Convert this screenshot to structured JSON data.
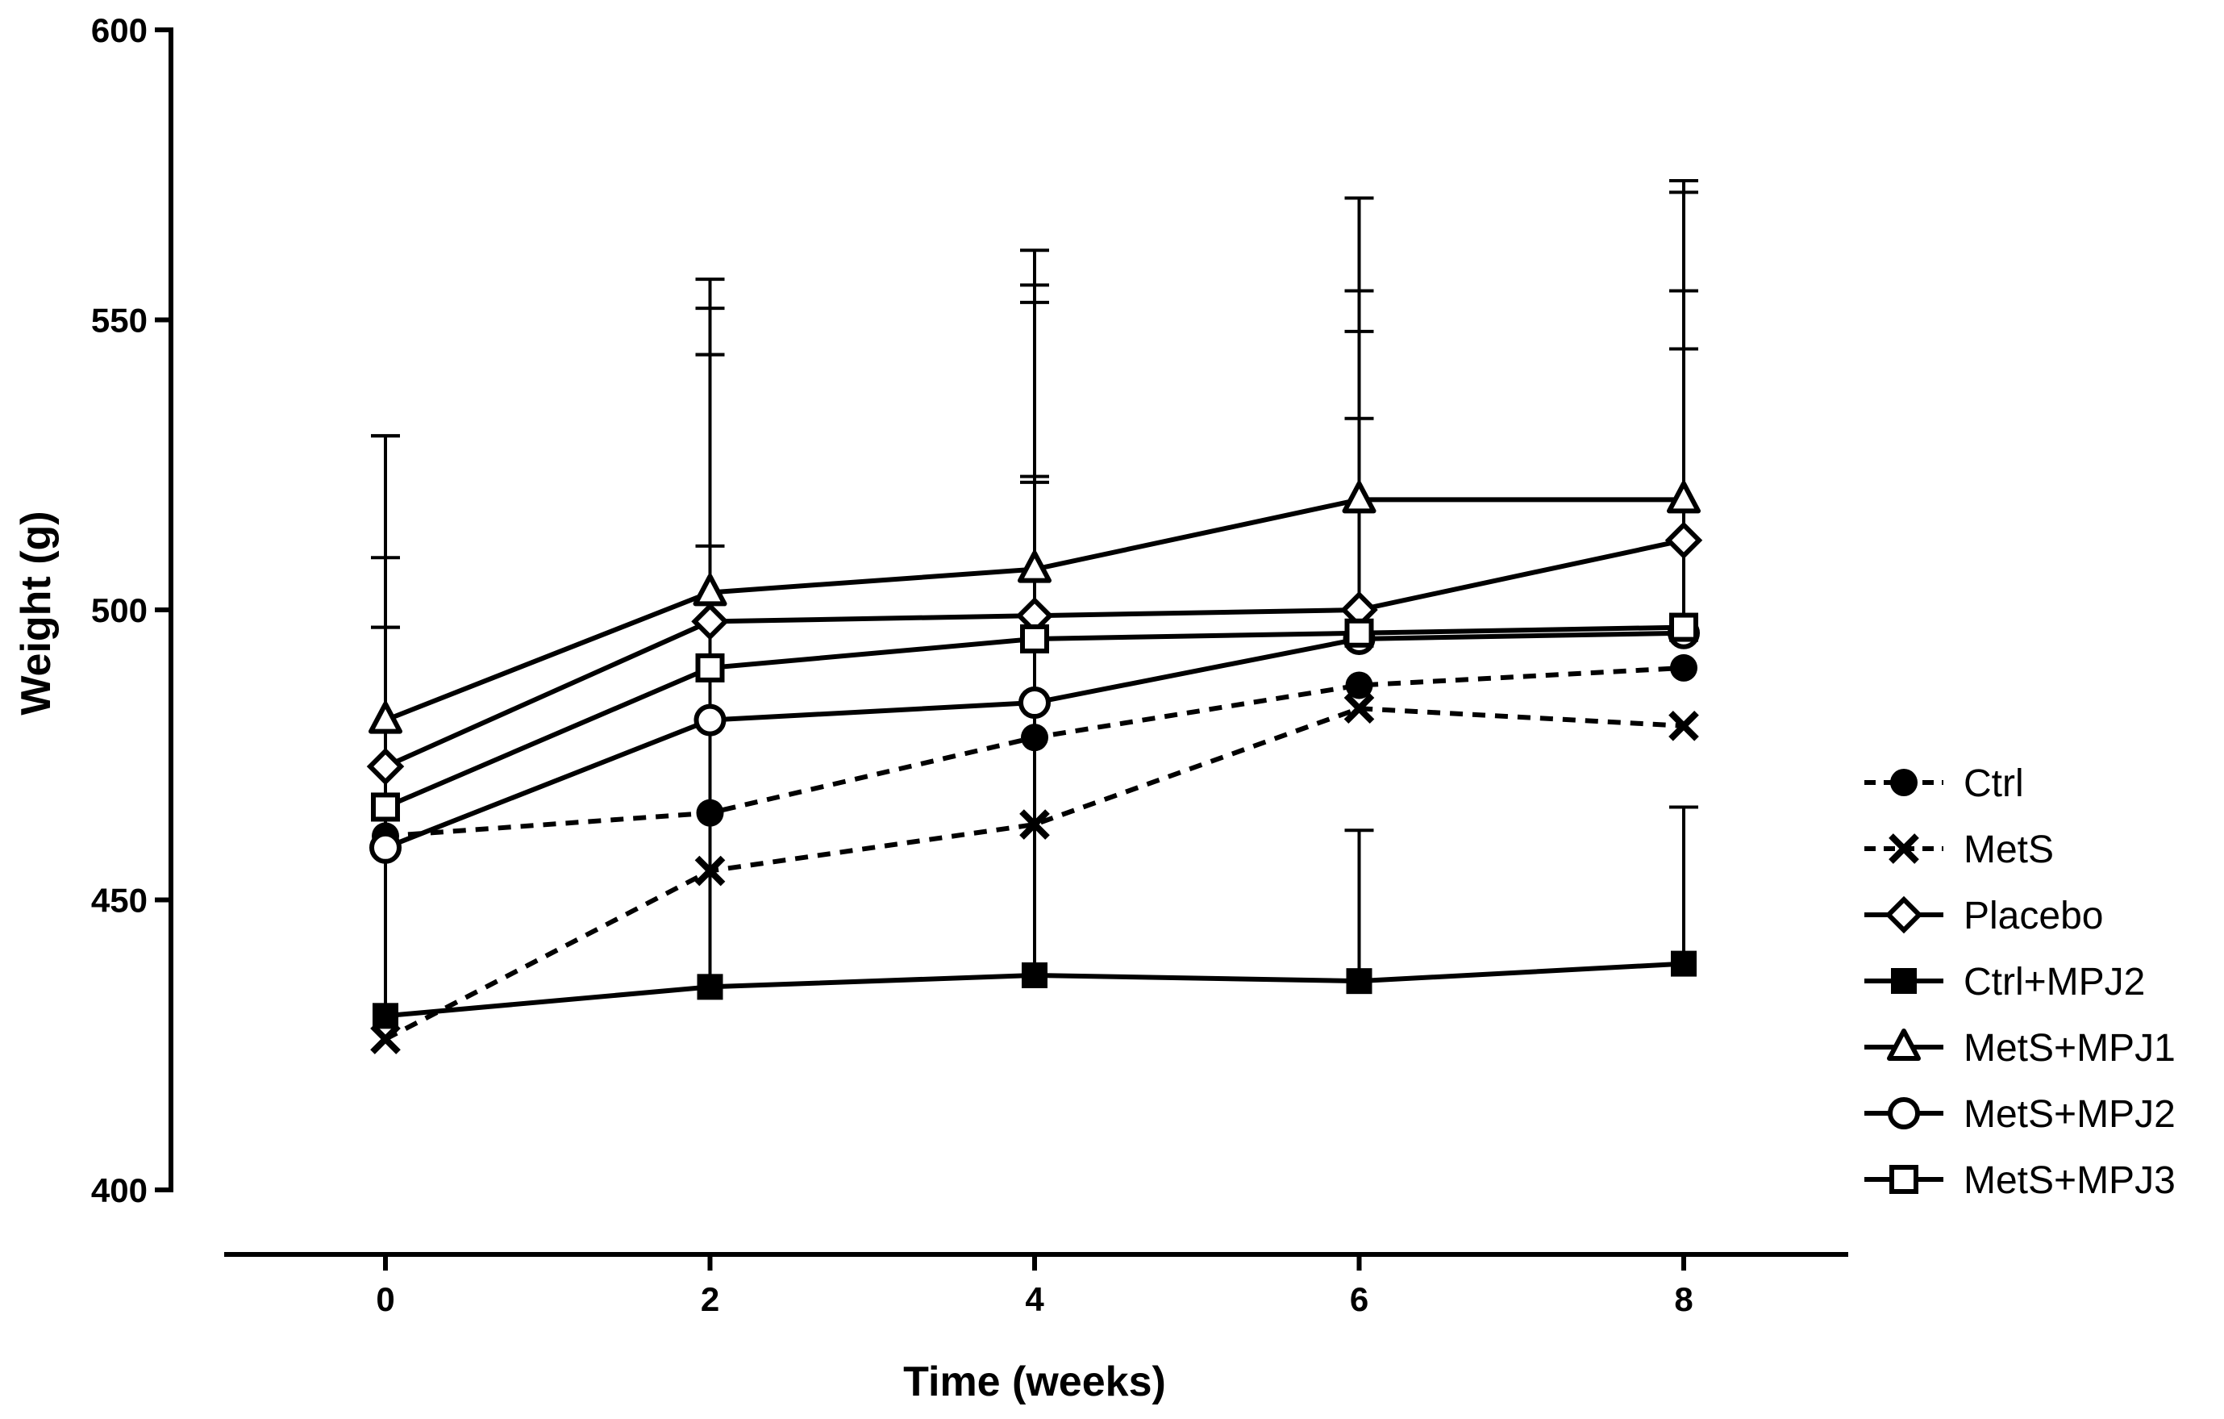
{
  "chart_data": {
    "type": "line",
    "title": "",
    "xlabel": "Time (weeks)",
    "ylabel": "Weight (g)",
    "x": [
      0,
      2,
      4,
      6,
      8
    ],
    "xlim": [
      -1,
      9.0
    ],
    "ylim": [
      400,
      600
    ],
    "yticks": [
      400,
      450,
      500,
      550,
      600
    ],
    "xticks": [
      0,
      2,
      4,
      6,
      8
    ],
    "legend_position": "right",
    "series": [
      {
        "name": "Ctrl",
        "marker": "circle-filled",
        "dashed": true,
        "values": [
          461,
          465,
          478,
          487,
          490
        ],
        "errors": [
          0,
          0,
          0,
          0,
          0
        ]
      },
      {
        "name": "MetS",
        "marker": "x",
        "dashed": true,
        "values": [
          426,
          455,
          463,
          483,
          480
        ],
        "errors": [
          0,
          0,
          0,
          0,
          0
        ]
      },
      {
        "name": "Placebo",
        "marker": "diamond-open",
        "dashed": false,
        "values": [
          473,
          498,
          499,
          500,
          512
        ],
        "errors": [
          36,
          46,
          57,
          48,
          43
        ]
      },
      {
        "name": "Ctrl+MPJ2",
        "marker": "square-filled",
        "dashed": false,
        "values": [
          430,
          435,
          437,
          436,
          439
        ],
        "errors": [
          67,
          109,
          116,
          26,
          27
        ]
      },
      {
        "name": "MetS+MPJ1",
        "marker": "triangle-open",
        "dashed": false,
        "values": [
          481,
          503,
          507,
          519,
          519
        ],
        "errors": [
          49,
          54,
          55,
          52,
          55
        ]
      },
      {
        "name": "MetS+MPJ2",
        "marker": "circle-open",
        "dashed": false,
        "values": [
          459,
          481,
          484,
          495,
          496
        ],
        "errors": [
          38,
          30,
          38,
          60,
          76
        ]
      },
      {
        "name": "MetS+MPJ3",
        "marker": "square-open",
        "dashed": false,
        "values": [
          466,
          490,
          495,
          496,
          497
        ],
        "errors": [
          64,
          62,
          28,
          37,
          48
        ]
      }
    ]
  }
}
